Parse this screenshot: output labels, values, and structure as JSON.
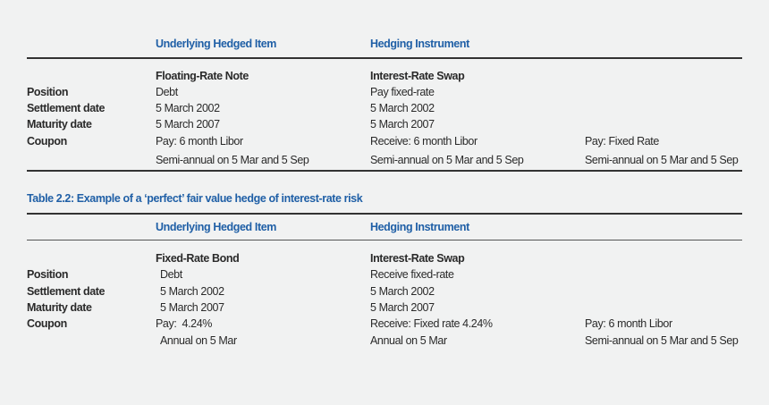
{
  "table1": {
    "header": {
      "underlying": "Underlying Hedged Item",
      "hedging": "Hedging Instrument"
    },
    "instrument_names": {
      "underlying": "Floating-Rate Note",
      "hedging": "Interest-Rate Swap"
    },
    "rows": [
      {
        "label": "Position",
        "underlying": "Debt",
        "hedging": "Pay fixed-rate",
        "extra": ""
      },
      {
        "label": "Settlement date",
        "underlying": "5 March 2002",
        "hedging": "5 March 2002",
        "extra": ""
      },
      {
        "label": "Maturity date",
        "underlying": "5 March 2007",
        "hedging": "5 March 2007",
        "extra": ""
      },
      {
        "label": "Coupon",
        "underlying": "Pay: 6 month Libor",
        "hedging": "Receive: 6 month Libor",
        "extra": "Pay: Fixed Rate"
      },
      {
        "label": "",
        "underlying": "Semi-annual on 5 Mar and 5 Sep",
        "hedging": "Semi-annual on 5 Mar and 5 Sep",
        "extra": "Semi-annual on 5 Mar and 5 Sep"
      }
    ]
  },
  "table2": {
    "caption": "Table 2.2: Example of a ‘perfect’ fair value hedge of interest-rate risk",
    "header": {
      "underlying": "Underlying Hedged Item",
      "hedging": "Hedging Instrument"
    },
    "instrument_names": {
      "underlying": "Fixed-Rate Bond",
      "hedging": "Interest-Rate Swap"
    },
    "rows": [
      {
        "label": "Position",
        "underlying": "Debt",
        "hedging": "Receive fixed-rate",
        "extra": ""
      },
      {
        "label": "Settlement date",
        "underlying": "5 March 2002",
        "hedging": "5 March 2002",
        "extra": ""
      },
      {
        "label": "Maturity date",
        "underlying": "5 March 2007",
        "hedging": "5 March 2007",
        "extra": ""
      },
      {
        "label": "Coupon",
        "underlying": "Pay:  4.24%",
        "hedging": "Receive: Fixed rate 4.24%",
        "extra": "Pay: 6 month Libor"
      },
      {
        "label": "",
        "underlying": "Annual on 5 Mar",
        "hedging": "Annual on 5 Mar",
        "extra": "Semi-annual on 5 Mar and 5 Sep"
      }
    ]
  }
}
